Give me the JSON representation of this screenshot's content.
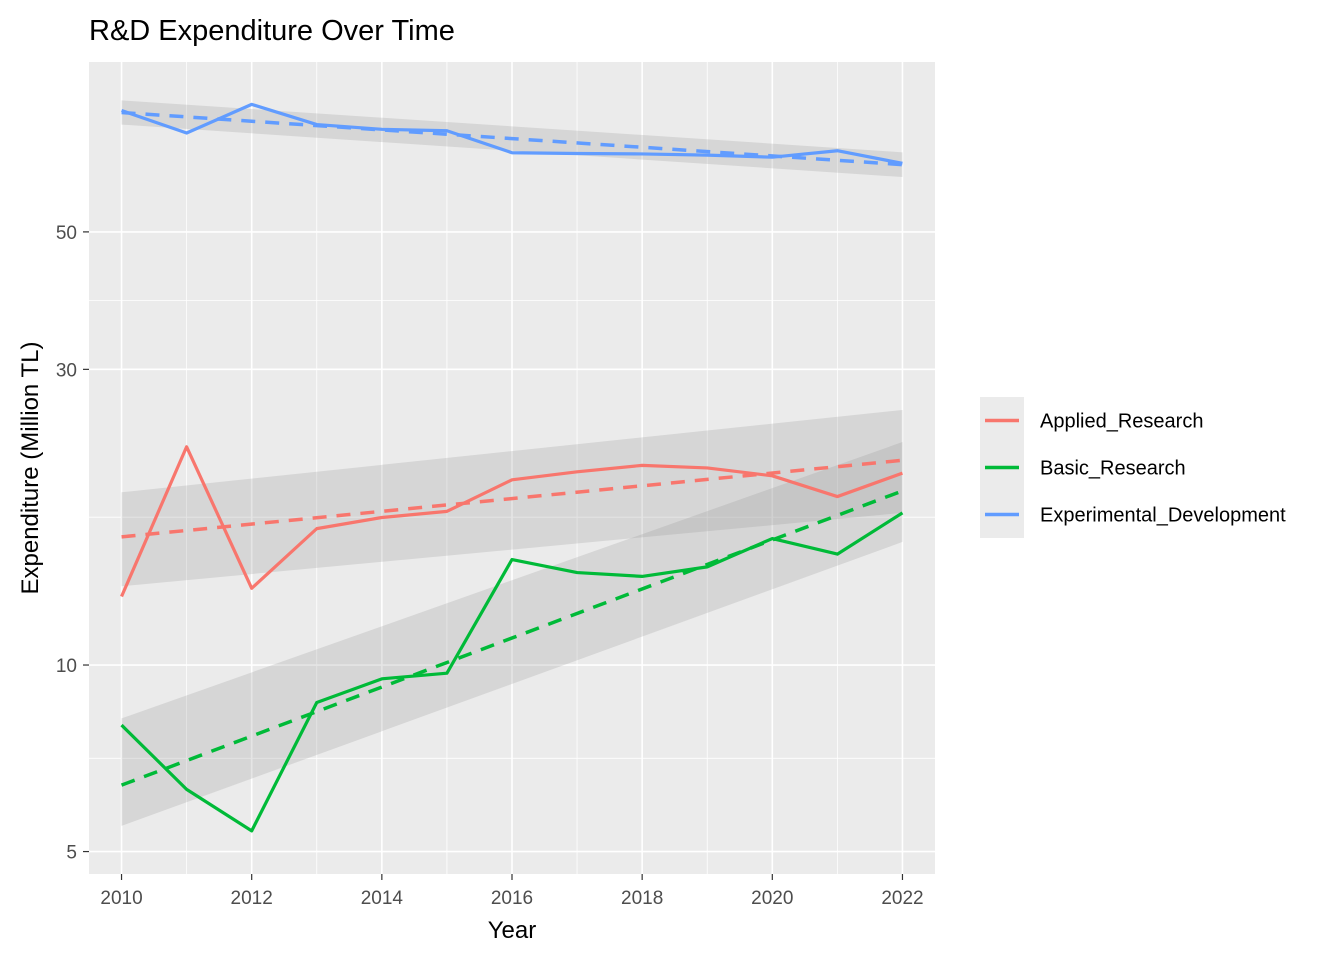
{
  "chart_data": {
    "type": "line",
    "title": "R&D Expenditure Over Time",
    "xlabel": "Year",
    "ylabel": "Expenditure (Million TL)",
    "y_scale": "log10",
    "xlim": [
      2009.5,
      2022.5
    ],
    "ylim": [
      4.6,
      94
    ],
    "x_ticks": [
      2010,
      2012,
      2014,
      2016,
      2018,
      2020,
      2022
    ],
    "y_ticks": [
      5,
      10,
      30,
      50
    ],
    "y_minor_ticks": [
      7.07,
      17.32,
      38.73
    ],
    "x": [
      2010,
      2011,
      2012,
      2013,
      2014,
      2015,
      2016,
      2017,
      2018,
      2019,
      2020,
      2021,
      2022
    ],
    "grid": true,
    "panel_background": "#ebebeb",
    "legend_position": "right",
    "series": [
      {
        "name": "Applied_Research",
        "color": "#f8766d",
        "values": [
          12.9,
          22.5,
          13.3,
          16.6,
          17.3,
          17.7,
          19.9,
          20.5,
          21.0,
          20.8,
          20.2,
          18.7,
          20.4
        ],
        "trend_start": 16.1,
        "trend_end": 21.4,
        "ci_start": [
          13.4,
          19.0
        ],
        "ci_end": [
          17.6,
          25.8
        ]
      },
      {
        "name": "Basic_Research",
        "color": "#00ba38",
        "values": [
          8.0,
          6.3,
          5.4,
          8.7,
          9.5,
          9.7,
          14.8,
          14.1,
          13.9,
          14.4,
          16.0,
          15.1,
          17.6
        ],
        "trend_start": 6.4,
        "trend_end": 19.1,
        "ci_start": [
          5.5,
          8.2
        ],
        "ci_end": [
          15.8,
          22.9
        ]
      },
      {
        "name": "Experimental_Development",
        "color": "#619cff",
        "values": [
          78.5,
          72.2,
          80.3,
          74.5,
          73.2,
          72.8,
          67.1,
          66.9,
          66.8,
          66.5,
          66.0,
          67.6,
          64.5
        ],
        "trend_start": 77.9,
        "trend_end": 64.2,
        "ci_start": [
          74.5,
          81.5
        ],
        "ci_end": [
          61.3,
          67.2
        ]
      }
    ]
  }
}
